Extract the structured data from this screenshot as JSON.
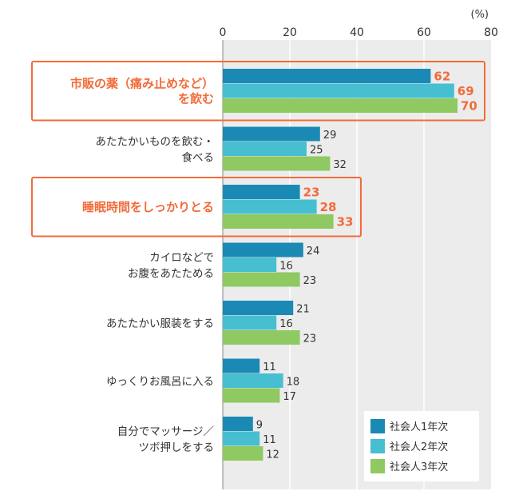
{
  "chart_data": {
    "type": "bar",
    "orientation": "horizontal",
    "unit_label": "(%)",
    "xlim": [
      0,
      80
    ],
    "xticks": [
      0,
      20,
      40,
      60,
      80
    ],
    "grid": true,
    "legend_position": "bottom-right",
    "categories": [
      {
        "lines": [
          "市販の薬（痛み止めなど）",
          "を飲む"
        ],
        "highlight": true
      },
      {
        "lines": [
          "あたたかいものを飲む・",
          "食べる"
        ],
        "highlight": false
      },
      {
        "lines": [
          "睡眠時間をしっかりとる"
        ],
        "highlight": true
      },
      {
        "lines": [
          "カイロなどで",
          "お腹をあたためる"
        ],
        "highlight": false
      },
      {
        "lines": [
          "あたたかい服装をする"
        ],
        "highlight": false
      },
      {
        "lines": [
          "ゆっくりお風呂に入る"
        ],
        "highlight": false
      },
      {
        "lines": [
          "自分でマッサージ／",
          "ツボ押しをする"
        ],
        "highlight": false
      }
    ],
    "series": [
      {
        "name": "社会人1年次",
        "color": "#1a8ab5",
        "values": [
          62,
          29,
          23,
          24,
          21,
          11,
          9
        ]
      },
      {
        "name": "社会人2年次",
        "color": "#47bfd1",
        "values": [
          69,
          25,
          28,
          16,
          16,
          18,
          11
        ]
      },
      {
        "name": "社会人3年次",
        "color": "#8ec961",
        "values": [
          70,
          32,
          33,
          23,
          23,
          17,
          12
        ]
      }
    ],
    "colors": {
      "plot_background": "#ececec",
      "gridline": "#ffffff",
      "highlight": "#f26b3a"
    }
  }
}
